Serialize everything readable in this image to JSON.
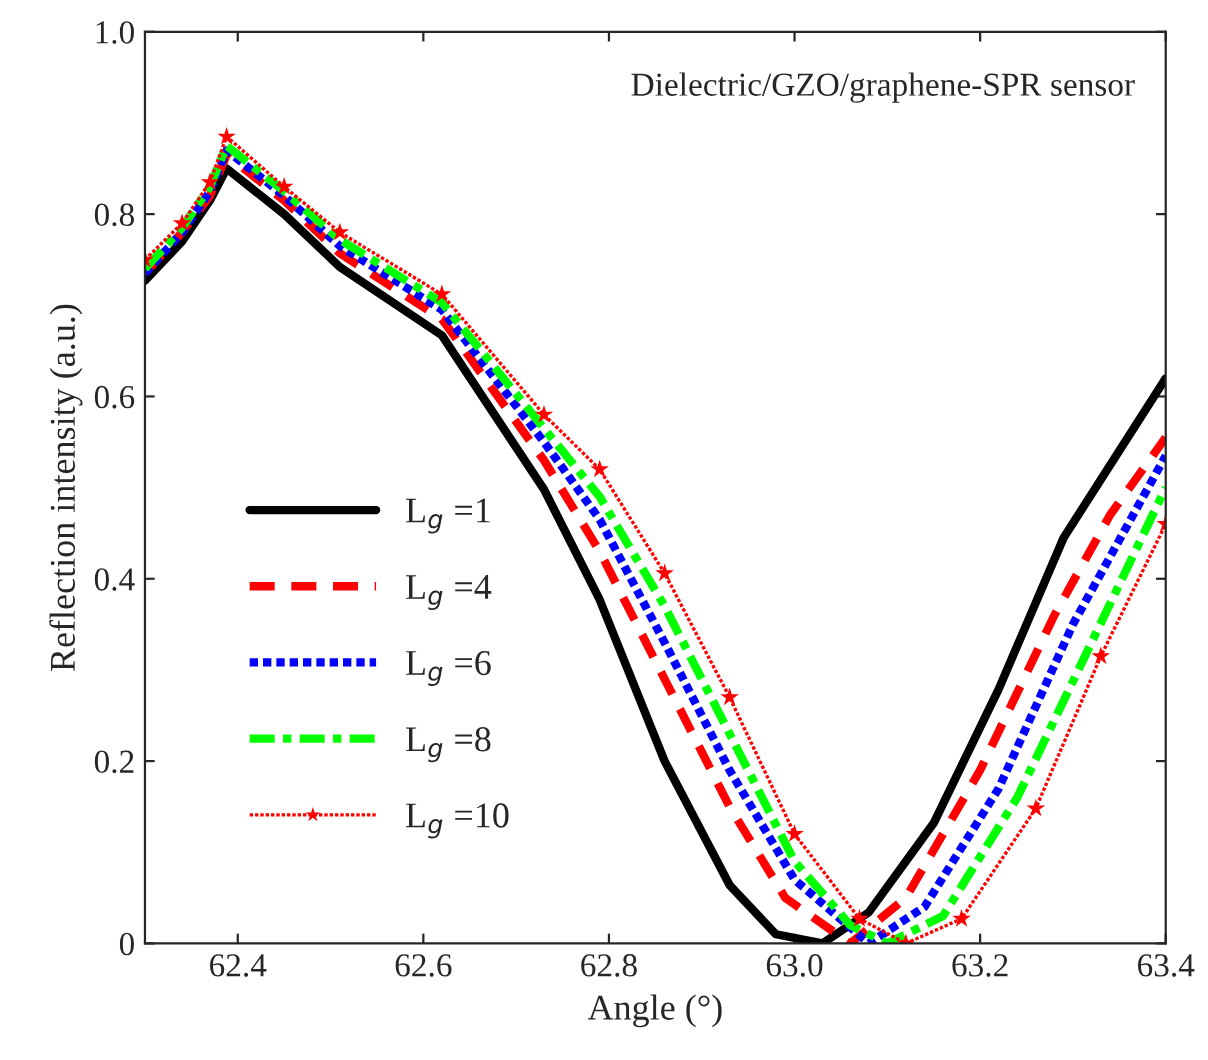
{
  "chart_data": {
    "type": "line",
    "xlabel": "Angle (°)",
    "ylabel": "Reflection intensity (a.u.)",
    "annotations": [
      "Dielectric/GZO/graphene-SPR sensor"
    ],
    "xlim": [
      62.3,
      63.4
    ],
    "xticks": [
      62.4,
      62.6,
      62.8,
      {
        "value": 63.0,
        "label": "63.0"
      },
      63.2,
      63.4
    ],
    "ylim": [
      0,
      1.0
    ],
    "yticks": [
      0,
      0.2,
      0.4,
      0.6,
      0.8,
      {
        "value": 1.0,
        "label": "1.0"
      }
    ],
    "legend": "bottom left",
    "grid": false,
    "series": [
      {
        "name": "L$_{g}$ =1",
        "color": "#000000",
        "line_style": "solid",
        "x": [
          62.3,
          62.34,
          62.37,
          62.388,
          62.45,
          62.51,
          62.62,
          62.73,
          62.79,
          62.86,
          62.93,
          62.98,
          63.03,
          63.08,
          63.15,
          63.22,
          63.29,
          63.4
        ],
        "values": [
          0.727,
          0.77,
          0.815,
          0.85,
          0.8,
          0.742,
          0.667,
          0.498,
          0.377,
          0.2,
          0.064,
          0.01,
          0,
          0.034,
          0.132,
          0.279,
          0.445,
          0.62
        ]
      },
      {
        "name": "L$_{g}$ =4",
        "color": "#ff0000",
        "line_style": "dashed",
        "x": [
          62.3,
          62.34,
          62.37,
          62.388,
          62.45,
          62.51,
          62.62,
          62.73,
          62.79,
          62.86,
          62.93,
          62.99,
          63.06,
          63.12,
          63.2,
          63.28,
          63.34,
          63.4
        ],
        "values": [
          0.735,
          0.78,
          0.82,
          0.865,
          0.815,
          0.757,
          0.685,
          0.53,
          0.43,
          0.29,
          0.15,
          0.05,
          0,
          0.05,
          0.19,
          0.36,
          0.47,
          0.555
        ]
      },
      {
        "name": "L$_{g}$ =6",
        "color": "#0000ff",
        "line_style": "dotted",
        "x": [
          62.3,
          62.34,
          62.37,
          62.388,
          62.45,
          62.51,
          62.62,
          62.73,
          62.79,
          62.86,
          62.93,
          63.0,
          63.08,
          63.14,
          63.22,
          63.3,
          63.4
        ],
        "values": [
          0.735,
          0.78,
          0.825,
          0.87,
          0.82,
          0.765,
          0.695,
          0.55,
          0.465,
          0.33,
          0.19,
          0.07,
          0,
          0.04,
          0.17,
          0.35,
          0.535
        ]
      },
      {
        "name": "L$_{g}$ =8",
        "color": "#00ff00",
        "line_style": "dashdot",
        "x": [
          62.3,
          62.34,
          62.37,
          62.388,
          62.45,
          62.51,
          62.62,
          62.73,
          62.79,
          62.86,
          62.93,
          63.0,
          63.06,
          63.1,
          63.16,
          63.24,
          63.32,
          63.4
        ],
        "values": [
          0.74,
          0.785,
          0.83,
          0.875,
          0.825,
          0.772,
          0.703,
          0.565,
          0.49,
          0.37,
          0.23,
          0.09,
          0.02,
          0,
          0.03,
          0.16,
          0.33,
          0.5
        ]
      },
      {
        "name": "L$_{g}$ =10",
        "color": "#ff0000",
        "line_style": "dotted",
        "marker": "star",
        "x": [
          62.3,
          62.34,
          62.37,
          62.388,
          62.45,
          62.51,
          62.62,
          62.73,
          62.79,
          62.86,
          62.93,
          63.0,
          63.07,
          63.12,
          63.18,
          63.26,
          63.33,
          63.4
        ],
        "values": [
          0.75,
          0.79,
          0.835,
          0.885,
          0.83,
          0.78,
          0.712,
          0.58,
          0.52,
          0.406,
          0.27,
          0.12,
          0.027,
          0,
          0.027,
          0.148,
          0.315,
          0.46
        ]
      }
    ]
  }
}
